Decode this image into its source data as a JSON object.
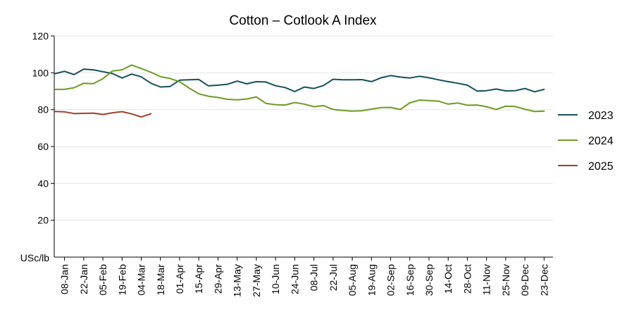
{
  "chart_data": {
    "type": "line",
    "title": "Cotton – Cotlook A Index",
    "ylabel": "USc/lb",
    "xlabel": "",
    "ylim": [
      0,
      120
    ],
    "yticks": [
      20,
      40,
      60,
      80,
      100,
      120
    ],
    "grid": true,
    "legend": "right",
    "x_tick_labels": [
      "08-Jan",
      "22-Jan",
      "05-Feb",
      "19-Feb",
      "04-Mar",
      "18-Mar",
      "01-Apr",
      "15-Apr",
      "29-Apr",
      "13-May",
      "27-May",
      "10-Jun",
      "24-Jun",
      "08-Jul",
      "22-Jul",
      "05-Aug",
      "19-Aug",
      "02-Sep",
      "16-Sep",
      "30-Sep",
      "14-Oct",
      "28-Oct",
      "11-Nov",
      "25-Nov",
      "09-Dec",
      "23-Dec"
    ],
    "series": [
      {
        "name": "2023",
        "color": "#14505c",
        "values": [
          99.5,
          100.8,
          99.0,
          102.0,
          101.6,
          100.6,
          99.6,
          97.2,
          99.3,
          97.8,
          94.3,
          92.3,
          92.6,
          96.0,
          96.2,
          96.4,
          92.9,
          93.3,
          93.8,
          95.5,
          94.0,
          95.2,
          95.0,
          93.0,
          92.0,
          89.8,
          92.3,
          91.5,
          93.1,
          96.5,
          96.2,
          96.2,
          96.3,
          95.2,
          97.3,
          98.5,
          97.7,
          97.2,
          98.1,
          97.3,
          96.2,
          95.2,
          94.3,
          93.3,
          90.1,
          90.3,
          91.2,
          90.2,
          90.3,
          91.5,
          89.7,
          91.0
        ]
      },
      {
        "name": "2024",
        "color": "#6e9a22",
        "values": [
          91.0,
          91.0,
          91.9,
          94.3,
          94.1,
          96.8,
          101.0,
          101.6,
          104.2,
          102.3,
          100.3,
          97.9,
          96.9,
          95.2,
          91.7,
          88.6,
          87.3,
          86.6,
          85.6,
          85.3,
          85.8,
          86.9,
          83.4,
          82.7,
          82.5,
          83.9,
          83.0,
          81.6,
          82.2,
          80.1,
          79.6,
          79.2,
          79.4,
          80.3,
          81.1,
          81.2,
          80.1,
          83.7,
          85.2,
          84.9,
          84.6,
          83.0,
          83.6,
          82.4,
          82.5,
          81.6,
          80.1,
          81.9,
          81.7,
          80.2,
          79.0,
          79.2
        ]
      },
      {
        "name": "2025",
        "color": "#a0402a",
        "values": [
          79.0,
          78.8,
          77.9,
          78.0,
          78.1,
          77.4,
          78.3,
          78.9,
          77.7,
          76.0,
          77.8
        ]
      }
    ]
  }
}
